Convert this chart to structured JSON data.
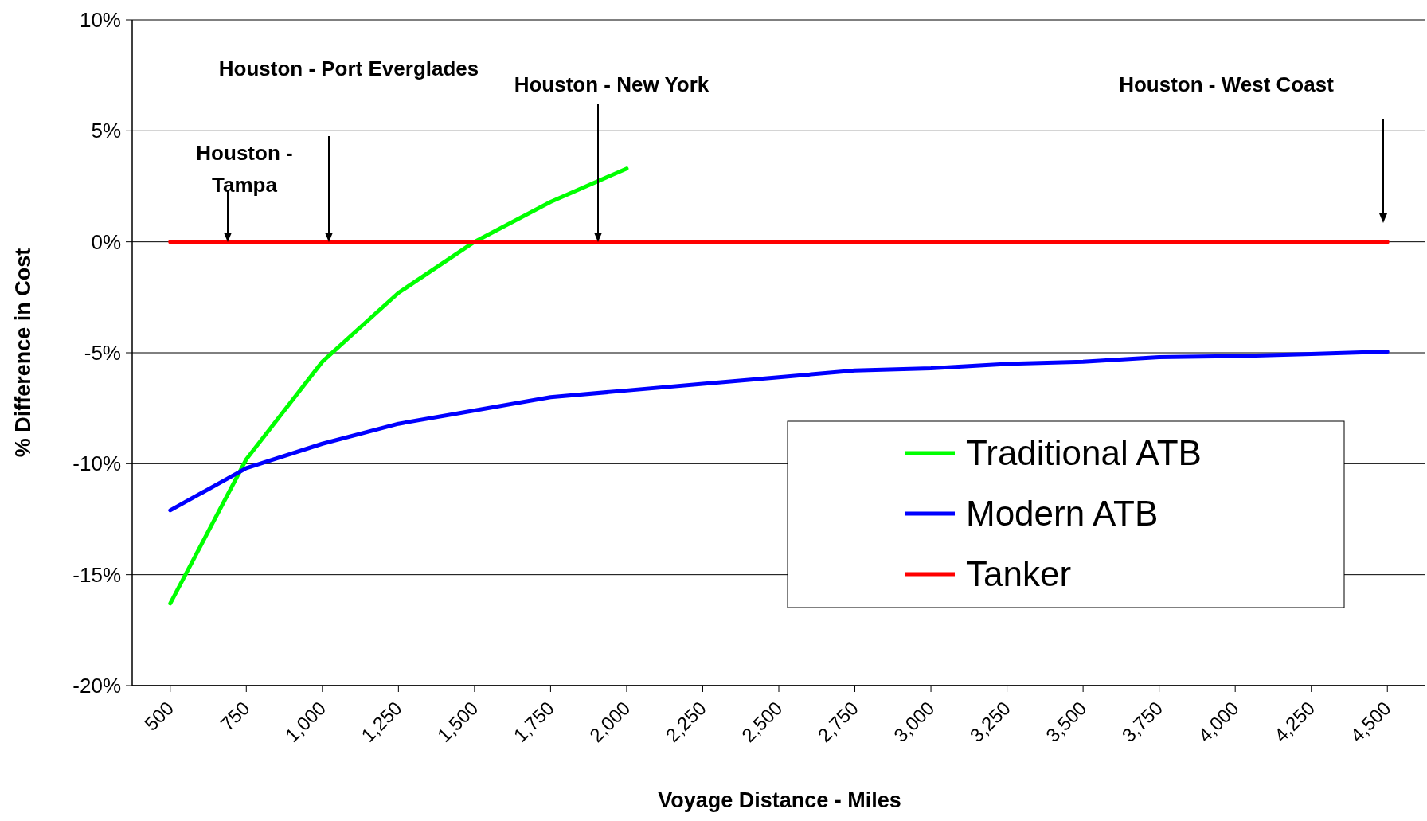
{
  "chart_data": {
    "type": "line",
    "xlabel": "Voyage Distance - Miles",
    "ylabel": "% Difference in Cost",
    "x": [
      500,
      750,
      1000,
      1250,
      1500,
      1750,
      2000,
      2250,
      2500,
      2750,
      3000,
      3250,
      3500,
      3750,
      4000,
      4250,
      4500
    ],
    "series": [
      {
        "name": "Traditional ATB",
        "color": "#00ff00",
        "x": [
          500,
          750,
          1000,
          1250,
          1500,
          1750,
          2000
        ],
        "values": [
          -16.3,
          -9.8,
          -5.4,
          -2.3,
          0,
          1.8,
          3.3
        ]
      },
      {
        "name": "Modern ATB",
        "color": "#0000ff",
        "values": [
          -12.1,
          -10.2,
          -9.1,
          -8.2,
          -7.6,
          -7.0,
          -6.7,
          -6.4,
          -6.1,
          -5.8,
          -5.7,
          -5.5,
          -5.4,
          -5.2,
          -5.15,
          -5.05,
          -4.95
        ]
      },
      {
        "name": "Tanker",
        "color": "#ff0000",
        "values": [
          0,
          0,
          0,
          0,
          0,
          0,
          0,
          0,
          0,
          0,
          0,
          0,
          0,
          0,
          0,
          0,
          0
        ]
      }
    ],
    "xlim": [
      375,
      4625
    ],
    "xticks": [
      500,
      750,
      {
        "value": 1000,
        "label": "1,000"
      },
      {
        "value": 1250,
        "label": "1,250"
      },
      {
        "value": 1500,
        "label": "1,500"
      },
      {
        "value": 1750,
        "label": "1,750"
      },
      {
        "value": 2000,
        "label": "2,000"
      },
      {
        "value": 2250,
        "label": "2,250"
      },
      {
        "value": 2500,
        "label": "2,500"
      },
      {
        "value": 2750,
        "label": "2,750"
      },
      {
        "value": 3000,
        "label": "3,000"
      },
      {
        "value": 3250,
        "label": "3,250"
      },
      {
        "value": 3500,
        "label": "3,500"
      },
      {
        "value": 3750,
        "label": "3,750"
      },
      {
        "value": 4000,
        "label": "4,000"
      },
      {
        "value": 4250,
        "label": "4,250"
      },
      {
        "value": 4500,
        "label": "4,500"
      }
    ],
    "ylim": [
      -20,
      10
    ],
    "yticks": [
      {
        "value": -20,
        "label": "-20%"
      },
      {
        "value": -15,
        "label": "-15%"
      },
      {
        "value": -10,
        "label": "-10%"
      },
      {
        "value": -5,
        "label": "-5%"
      },
      {
        "value": 0,
        "label": "0%"
      },
      {
        "value": 5,
        "label": "5%"
      },
      {
        "value": 10,
        "label": "10%"
      }
    ],
    "grid": "y",
    "legend": "bottom right",
    "marker": "none",
    "line_style": "solid",
    "annotations": [
      "Houston - Tampa",
      "Houston - Port Everglades",
      "Houston - New York",
      "Houston - West Coast"
    ]
  }
}
